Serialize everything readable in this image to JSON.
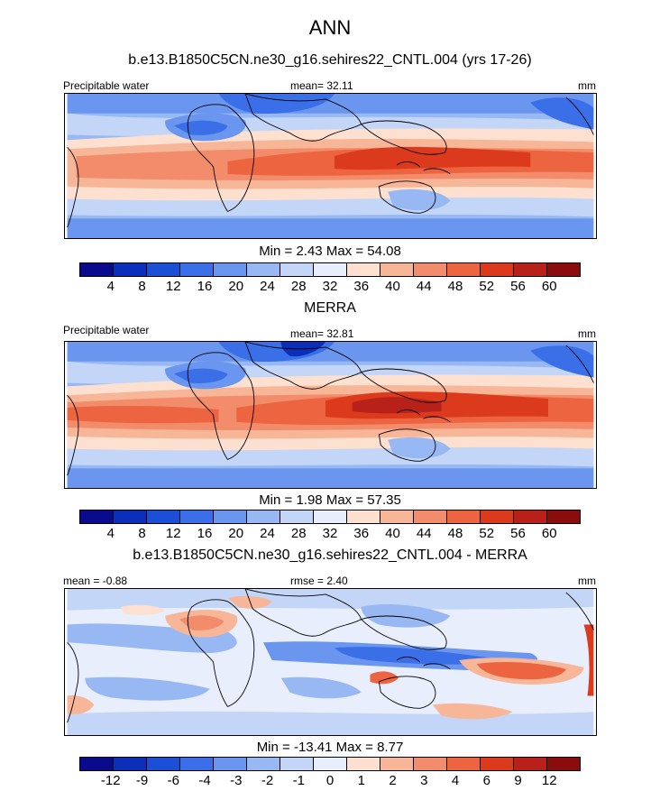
{
  "title": "ANN",
  "colors": {
    "abs_scale": [
      "#0a0a8c",
      "#0b2fb8",
      "#1a4fd6",
      "#3a6fe8",
      "#6a96ef",
      "#98b8f4",
      "#c4d6f8",
      "#e8eefc",
      "#fde0d0",
      "#f8b699",
      "#f38c6a",
      "#ec6440",
      "#dc3a1c",
      "#b8201a",
      "#8a0c0c"
    ],
    "diff_scale": [
      "#0a0a8c",
      "#0b2fb8",
      "#1a4fd6",
      "#3a6fe8",
      "#6a96ef",
      "#98b8f4",
      "#c4d6f8",
      "#e8eefc",
      "#fde0d0",
      "#f8b699",
      "#f38c6a",
      "#ec6440",
      "#dc3a1c",
      "#b8201a",
      "#8a0c0c"
    ],
    "land_outline": "#000000"
  },
  "panels": [
    {
      "title": "b.e13.B1850C5CN.ne30_g16.sehires22_CNTL.004 (yrs 17-26)",
      "left_label": "Precipitable water",
      "center_label": "mean=  32.11",
      "right_label": "mm",
      "min_text": "Min =   2.43",
      "max_text": "Max =  54.08",
      "colorbar_ticks": [
        "4",
        "8",
        "12",
        "16",
        "20",
        "24",
        "28",
        "32",
        "36",
        "40",
        "44",
        "48",
        "52",
        "56",
        "60"
      ]
    },
    {
      "title": "MERRA",
      "left_label": "Precipitable water",
      "center_label": "mean=  32.81",
      "right_label": "mm",
      "min_text": "Min =   1.98",
      "max_text": "Max =  57.35",
      "colorbar_ticks": [
        "4",
        "8",
        "12",
        "16",
        "20",
        "24",
        "28",
        "32",
        "36",
        "40",
        "44",
        "48",
        "52",
        "56",
        "60"
      ]
    },
    {
      "title": "b.e13.B1850C5CN.ne30_g16.sehires22_CNTL.004 - MERRA",
      "left_label": "mean =  -0.88",
      "center_label": "rmse =   2.40",
      "right_label": "mm",
      "min_text": "Min = -13.41",
      "max_text": "Max =   8.77",
      "colorbar_ticks": [
        "-12",
        "-9",
        "-6",
        "-4",
        "-3",
        "-2",
        "-1",
        "0",
        "1",
        "2",
        "3",
        "4",
        "6",
        "9",
        "12"
      ]
    }
  ],
  "chart_data": [
    {
      "type": "heatmap",
      "title": "b.e13.B1850C5CN.ne30_g16.sehires22_CNTL.004 (yrs 17-26)",
      "variable": "Precipitable water",
      "units": "mm",
      "mean": 32.11,
      "min": 2.43,
      "max": 54.08,
      "levels": [
        4,
        8,
        12,
        16,
        20,
        24,
        28,
        32,
        36,
        40,
        44,
        48,
        52,
        56,
        60
      ]
    },
    {
      "type": "heatmap",
      "title": "MERRA",
      "variable": "Precipitable water",
      "units": "mm",
      "mean": 32.81,
      "min": 1.98,
      "max": 57.35,
      "levels": [
        4,
        8,
        12,
        16,
        20,
        24,
        28,
        32,
        36,
        40,
        44,
        48,
        52,
        56,
        60
      ]
    },
    {
      "type": "heatmap",
      "title": "b.e13.B1850C5CN.ne30_g16.sehires22_CNTL.004 - MERRA",
      "units": "mm",
      "mean": -0.88,
      "rmse": 2.4,
      "min": -13.41,
      "max": 8.77,
      "levels": [
        -12,
        -9,
        -6,
        -4,
        -3,
        -2,
        -1,
        0,
        1,
        2,
        3,
        4,
        6,
        9,
        12
      ]
    }
  ]
}
